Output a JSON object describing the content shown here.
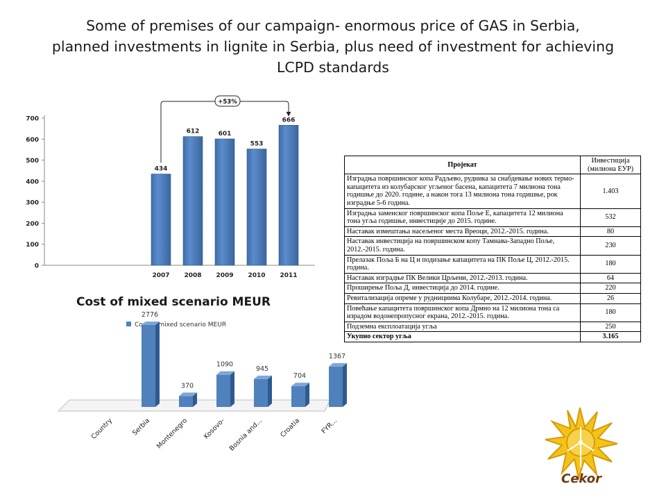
{
  "slide": {
    "title_lines": [
      "Some of premises of our campaign- enormous  price of GAS in Serbia,",
      "planned investments in lignite in Serbia, plus need of investment for achieving",
      "LCPD standards"
    ]
  },
  "chart_data": [
    {
      "type": "bar",
      "categories": [
        "2007",
        "2008",
        "2009",
        "2010",
        "2011"
      ],
      "values": [
        434,
        612,
        601,
        553,
        666
      ],
      "ylim": [
        0,
        700
      ],
      "yticks": [
        0,
        100,
        200,
        300,
        400,
        500,
        600,
        700
      ],
      "annotation": "+53%",
      "grid": false,
      "color": "#4f81bd"
    },
    {
      "type": "bar",
      "title": "Cost of mixed scenario MEUR",
      "categories": [
        "Country",
        "Serbia",
        "Montenegro",
        "Kosovo-",
        "Bosnia and...",
        "Croatia",
        "FYR..."
      ],
      "values": [
        null,
        2776,
        370,
        1090,
        945,
        704,
        1367
      ],
      "legend": [
        "Cost of mixed scenario MEUR"
      ],
      "legend_position": "top-left",
      "ylim": [
        0,
        3000
      ],
      "style": "3d",
      "color": "#4f81bd"
    }
  ],
  "table": {
    "header": {
      "project": "Пројекат",
      "value": "Инвестиција (милиона ЕУР)"
    },
    "rows": [
      {
        "project": "Изградња површинског копа Радљево, рудника за снабдевање нових термо-капацитета из колубарског угљеног басена, капацитета 7 милиона тона годишње до 2020. године, а након тога 13 милиона тона годишње, рок изградње 5-6 година.",
        "value": "1.403"
      },
      {
        "project": "Изградња заменског површинског копа Поље Е, капацитета 12 милиона тона угља годишње, инвестиције до 2015. године.",
        "value": "532"
      },
      {
        "project": "Наставак измештања насељеног места Вреоци, 2012.-2015. година.",
        "value": "80"
      },
      {
        "project": "Наставак инвестиција на површинском копу Тамнава-Западно Поље,  2012.-2015. година.",
        "value": "230"
      },
      {
        "project": "Прелазак Поља Б на Ц и подизање капацитета на ПК Поље Ц, 2012.-2015. година.",
        "value": "180"
      },
      {
        "project": "Наставак изградње ПК Велики Црљени, 2012.-2013. година.",
        "value": "64"
      },
      {
        "project": "Проширење Поља Д, инвестиција до 2014. године.",
        "value": "220"
      },
      {
        "project": "Ревитализација опреме у руднициима Колубаре, 2012.-2014. година.",
        "value": "26"
      },
      {
        "project": "Повећање капацитета површинског копа Дрмно на 12 милиона тона са израдом водонепропусног екрана, 2012.-2015. година.",
        "value": "180"
      },
      {
        "project": "Подземна експлоатација угља",
        "value": "250"
      }
    ],
    "total": {
      "project": "Укупно сектор угља",
      "value": "3.165"
    }
  },
  "logo": {
    "text": "Cekor",
    "icon": "sun-wind-turbine-icon"
  }
}
